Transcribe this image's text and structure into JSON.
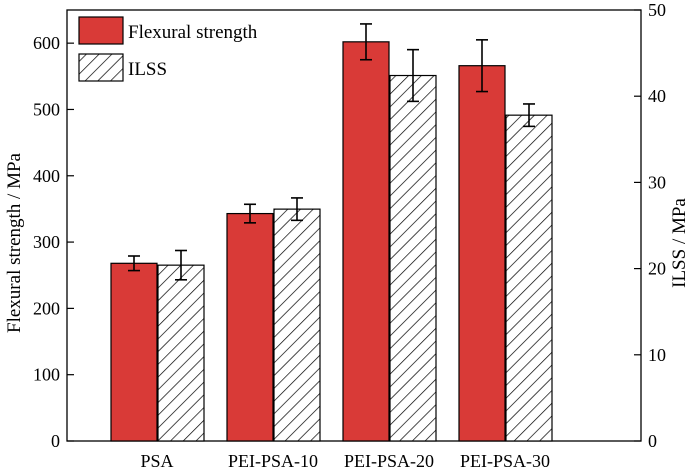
{
  "chart_data": {
    "type": "bar",
    "categories": [
      "PSA",
      "PEI-PSA-10",
      "PEI-PSA-20",
      "PEI-PSA-30"
    ],
    "series": [
      {
        "name": "Flexural strength",
        "axis": "left",
        "values": [
          268,
          343,
          602,
          566
        ],
        "errors": [
          11,
          14,
          27,
          39
        ],
        "color": "#d93a37",
        "fill": "solid"
      },
      {
        "name": "ILSS",
        "axis": "right",
        "values": [
          20.4,
          26.9,
          42.4,
          37.8
        ],
        "errors": [
          1.7,
          1.3,
          3.0,
          1.3
        ],
        "color": "#ffffff",
        "fill": "hatched"
      }
    ],
    "ylabel": "Flexural strength / MPa",
    "ylim": [
      0,
      650
    ],
    "yticks": [
      0,
      100,
      200,
      300,
      400,
      500,
      600
    ],
    "y2label": "ILSS / MPa",
    "y2lim": [
      0,
      50
    ],
    "y2ticks": [
      0,
      10,
      20,
      30,
      40,
      50
    ],
    "legend_position": "top-left",
    "grid": false
  }
}
